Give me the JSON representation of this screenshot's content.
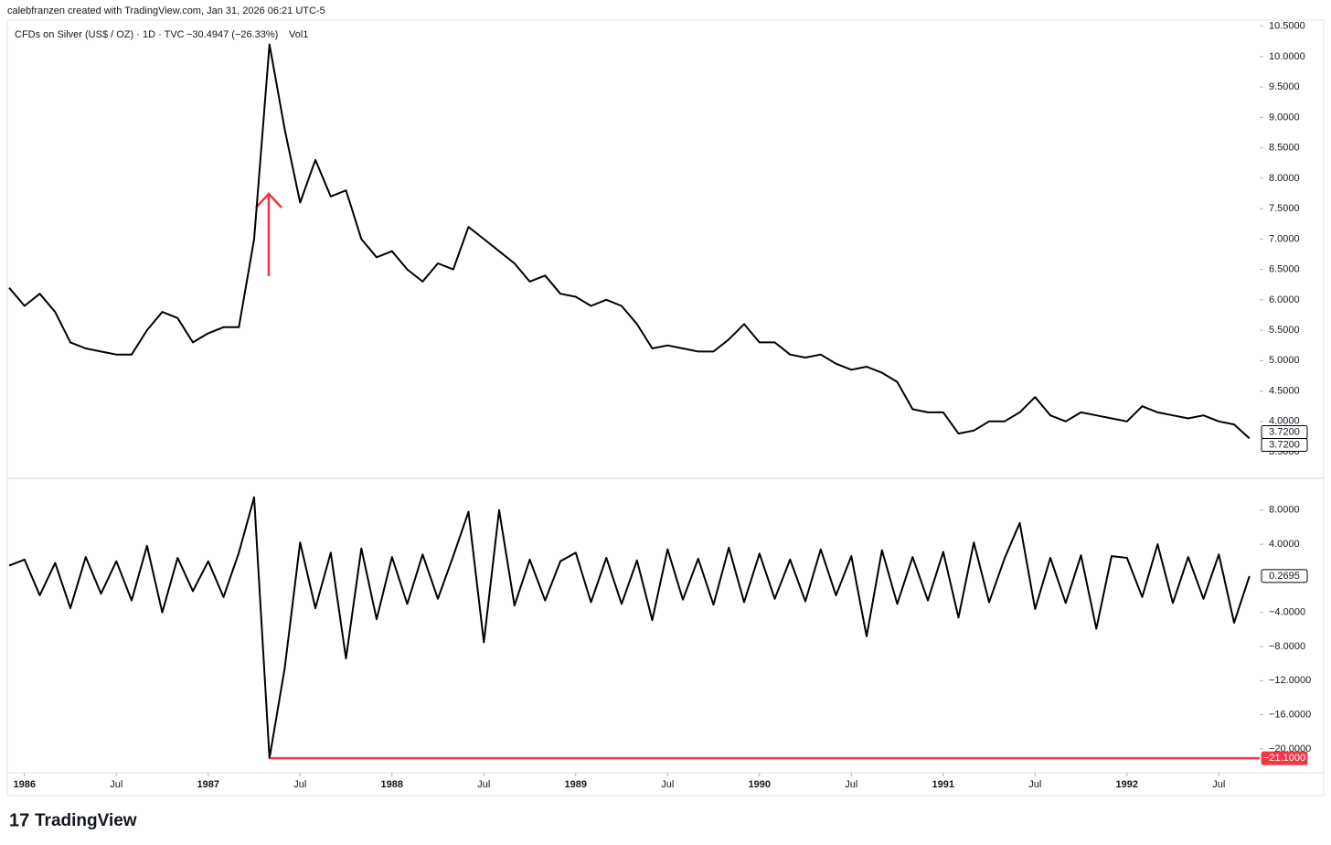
{
  "header": "calebfranzen created with TradingView.com, Jan 31, 2026 06:21 UTC-5",
  "footer": {
    "brand": "TradingView"
  },
  "chart_data": [
    {
      "type": "line",
      "title": "CFDs on Silver (US$ / OZ) · 1D · TVC",
      "subtitle": "−30.4947 (−26.33%)",
      "indicator": "Vol1",
      "x": [
        "1985-12",
        "1986-01",
        "1986-02",
        "1986-03",
        "1986-04",
        "1986-05",
        "1986-06",
        "1986-07",
        "1986-08",
        "1986-09",
        "1986-10",
        "1986-11",
        "1986-12",
        "1987-01",
        "1987-02",
        "1987-03",
        "1987-04",
        "1987-05",
        "1987-06",
        "1987-07",
        "1987-08",
        "1987-09",
        "1987-10",
        "1987-11",
        "1987-12",
        "1988-01",
        "1988-02",
        "1988-03",
        "1988-04",
        "1988-05",
        "1988-06",
        "1988-07",
        "1988-08",
        "1988-09",
        "1988-10",
        "1988-11",
        "1988-12",
        "1989-01",
        "1989-02",
        "1989-03",
        "1989-04",
        "1989-05",
        "1989-06",
        "1989-07",
        "1989-08",
        "1989-09",
        "1989-10",
        "1989-11",
        "1989-12",
        "1990-01",
        "1990-02",
        "1990-03",
        "1990-04",
        "1990-05",
        "1990-06",
        "1990-07",
        "1990-08",
        "1990-09",
        "1990-10",
        "1990-11",
        "1990-12",
        "1991-01",
        "1991-02",
        "1991-03",
        "1991-04",
        "1991-05",
        "1991-06",
        "1991-07",
        "1991-08",
        "1991-09",
        "1991-10",
        "1991-11",
        "1991-12",
        "1992-01",
        "1992-02",
        "1992-03",
        "1992-04",
        "1992-05",
        "1992-06",
        "1992-07",
        "1992-08",
        "1992-09"
      ],
      "series": [
        {
          "name": "CFDs on Silver",
          "color": "#000000",
          "values": [
            6.2,
            5.9,
            6.1,
            5.8,
            5.3,
            5.2,
            5.15,
            5.1,
            5.1,
            5.5,
            5.8,
            5.7,
            5.3,
            5.45,
            5.55,
            5.55,
            7.0,
            10.2,
            8.8,
            7.6,
            8.3,
            7.7,
            7.8,
            7.0,
            6.7,
            6.8,
            6.5,
            6.3,
            6.6,
            6.5,
            7.2,
            7.0,
            6.8,
            6.6,
            6.3,
            6.4,
            6.1,
            6.05,
            5.9,
            6.0,
            5.9,
            5.6,
            5.2,
            5.25,
            5.2,
            5.15,
            5.15,
            5.35,
            5.6,
            5.3,
            5.3,
            5.1,
            5.05,
            5.1,
            4.95,
            4.85,
            4.9,
            4.8,
            4.65,
            4.2,
            4.15,
            4.15,
            3.8,
            3.85,
            4.0,
            4.0,
            4.15,
            4.4,
            4.1,
            4.0,
            4.15,
            4.1,
            4.05,
            4.0,
            4.25,
            4.15,
            4.1,
            4.05,
            4.1,
            4.0,
            3.95,
            3.72
          ]
        }
      ],
      "ylim": [
        3.11,
        10.6
      ],
      "yticks": [
        {
          "value": 10.5,
          "label": "10.5000"
        },
        {
          "value": 10,
          "label": "10.0000"
        },
        {
          "value": 9.5,
          "label": "9.5000"
        },
        {
          "value": 9,
          "label": "9.0000"
        },
        {
          "value": 8.5,
          "label": "8.5000"
        },
        {
          "value": 8,
          "label": "8.0000"
        },
        {
          "value": 7.5,
          "label": "7.5000"
        },
        {
          "value": 7,
          "label": "7.0000"
        },
        {
          "value": 6.5,
          "label": "6.5000"
        },
        {
          "value": 6,
          "label": "6.0000"
        },
        {
          "value": 5.5,
          "label": "5.5000"
        },
        {
          "value": 5,
          "label": "5.0000"
        },
        {
          "value": 4.5,
          "label": "4.5000"
        },
        {
          "value": 4,
          "label": "4.0000"
        },
        {
          "value": 3.5,
          "label": "3.5000"
        }
      ],
      "markers": [
        {
          "value": 3.72,
          "label": "3.7200"
        },
        {
          "value": 3.72,
          "label": "3.7200"
        }
      ]
    },
    {
      "type": "line",
      "x": [
        "1985-12",
        "1986-01",
        "1986-02",
        "1986-03",
        "1986-04",
        "1986-05",
        "1986-06",
        "1986-07",
        "1986-08",
        "1986-09",
        "1986-10",
        "1986-11",
        "1986-12",
        "1987-01",
        "1987-02",
        "1987-03",
        "1987-04",
        "1987-05",
        "1987-06",
        "1987-07",
        "1987-08",
        "1987-09",
        "1987-10",
        "1987-11",
        "1987-12",
        "1988-01",
        "1988-02",
        "1988-03",
        "1988-04",
        "1988-05",
        "1988-06",
        "1988-07",
        "1988-08",
        "1988-09",
        "1988-10",
        "1988-11",
        "1988-12",
        "1989-01",
        "1989-02",
        "1989-03",
        "1989-04",
        "1989-05",
        "1989-06",
        "1989-07",
        "1989-08",
        "1989-09",
        "1989-10",
        "1989-11",
        "1989-12",
        "1990-01",
        "1990-02",
        "1990-03",
        "1990-04",
        "1990-05",
        "1990-06",
        "1990-07",
        "1990-08",
        "1990-09",
        "1990-10",
        "1990-11",
        "1990-12",
        "1991-01",
        "1991-02",
        "1991-03",
        "1991-04",
        "1991-05",
        "1991-06",
        "1991-07",
        "1991-08",
        "1991-09",
        "1991-10",
        "1991-11",
        "1991-12",
        "1992-01",
        "1992-02",
        "1992-03",
        "1992-04",
        "1992-05",
        "1992-06",
        "1992-07",
        "1992-08",
        "1992-09"
      ],
      "series": [
        {
          "name": "Vol1",
          "color": "#000000",
          "values": [
            1.5,
            2.2,
            -2.0,
            1.8,
            -3.5,
            2.5,
            -1.8,
            2.0,
            -2.6,
            3.8,
            -4.0,
            2.4,
            -1.5,
            2.0,
            -2.2,
            3.0,
            9.5,
            -21.1,
            -10.5,
            4.2,
            -3.5,
            3.0,
            -9.4,
            3.5,
            -4.8,
            2.5,
            -3.0,
            2.8,
            -2.4,
            2.6,
            7.8,
            -7.5,
            8.0,
            -3.2,
            2.2,
            -2.6,
            2.0,
            3.0,
            -2.8,
            2.4,
            -3.0,
            2.1,
            -4.9,
            3.4,
            -2.5,
            2.3,
            -3.1,
            3.6,
            -2.8,
            2.9,
            -2.4,
            2.2,
            -2.7,
            3.4,
            -2.0,
            2.6,
            -6.8,
            3.3,
            -3.0,
            2.5,
            -2.6,
            3.1,
            -4.6,
            4.2,
            -2.8,
            2.3,
            6.5,
            -3.6,
            2.4,
            -2.9,
            2.7,
            -5.9,
            2.6,
            2.4,
            -2.2,
            4.0,
            -2.9,
            2.5,
            -2.4,
            2.8,
            -5.2,
            0.2695
          ]
        }
      ],
      "ylim": [
        -22.8,
        11.3
      ],
      "yticks": [
        {
          "value": 8,
          "label": "8.0000"
        },
        {
          "value": 4,
          "label": "4.0000"
        },
        {
          "value": -4,
          "label": "−4.0000"
        },
        {
          "value": -8,
          "label": "−8.0000"
        },
        {
          "value": -12,
          "label": "−12.0000"
        },
        {
          "value": -16,
          "label": "−16.0000"
        },
        {
          "value": -20,
          "label": "−20.0000"
        }
      ],
      "markers": [
        {
          "value": 0.2695,
          "label": "0.2695",
          "color": "#000000"
        },
        {
          "value": -21.1,
          "label": "−21.1000",
          "color": "#f23645"
        }
      ],
      "xticks": [
        {
          "value": "1986-01",
          "label": "1986"
        },
        {
          "value": "1986-07",
          "label": "Jul"
        },
        {
          "value": "1987-01",
          "label": "1987"
        },
        {
          "value": "1987-07",
          "label": "Jul"
        },
        {
          "value": "1988-01",
          "label": "1988"
        },
        {
          "value": "1988-07",
          "label": "Jul"
        },
        {
          "value": "1989-01",
          "label": "1989"
        },
        {
          "value": "1989-07",
          "label": "Jul"
        },
        {
          "value": "1990-01",
          "label": "1990"
        },
        {
          "value": "1990-07",
          "label": "Jul"
        },
        {
          "value": "1991-01",
          "label": "1991"
        },
        {
          "value": "1991-07",
          "label": "Jul"
        },
        {
          "value": "1992-01",
          "label": "1992"
        },
        {
          "value": "1992-07",
          "label": "Jul"
        }
      ]
    }
  ]
}
